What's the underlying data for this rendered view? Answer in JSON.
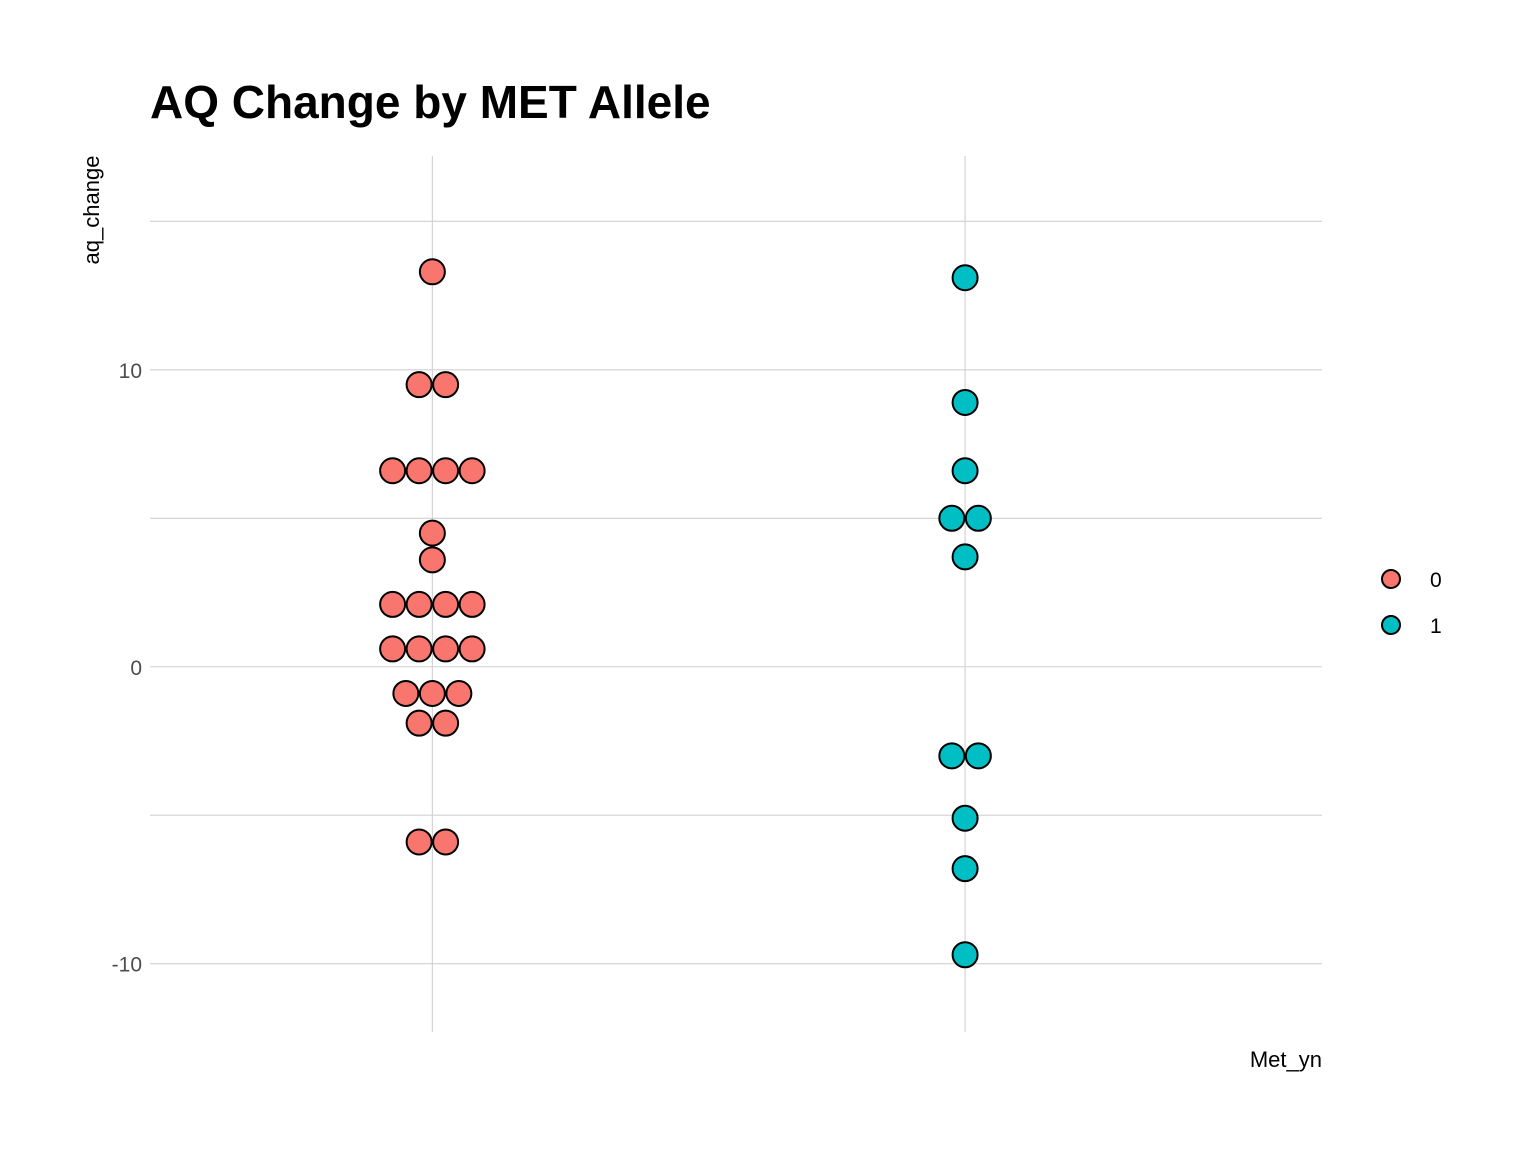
{
  "chart_data": {
    "type": "scatter",
    "subtype": "dotplot",
    "title": "AQ Change by MET Allele",
    "xlabel": "Met_yn",
    "ylabel": "aq_change",
    "categories": [
      "0",
      "1"
    ],
    "show_x_tick_labels": false,
    "yticks": [
      -10,
      0,
      10
    ],
    "ylim": [
      -12.3,
      17.2
    ],
    "grid": true,
    "legend_position": "right",
    "legend": {
      "items": [
        {
          "label": "0",
          "color": "#F8766D"
        },
        {
          "label": "1",
          "color": "#00BFC4"
        }
      ]
    },
    "series": [
      {
        "category": "0",
        "color": "#F8766D",
        "values": [
          13.3,
          9.5,
          9.5,
          6.6,
          6.6,
          6.6,
          6.6,
          4.5,
          3.6,
          2.1,
          2.1,
          2.1,
          2.1,
          0.6,
          0.6,
          0.6,
          0.6,
          -0.9,
          -0.9,
          -0.9,
          -1.9,
          -1.9,
          -5.9,
          -5.9
        ]
      },
      {
        "category": "1",
        "color": "#00BFC4",
        "values": [
          13.1,
          8.9,
          6.6,
          5.0,
          5.0,
          3.7,
          -3.0,
          -3.0,
          -5.1,
          -6.8,
          -9.7
        ]
      }
    ]
  }
}
